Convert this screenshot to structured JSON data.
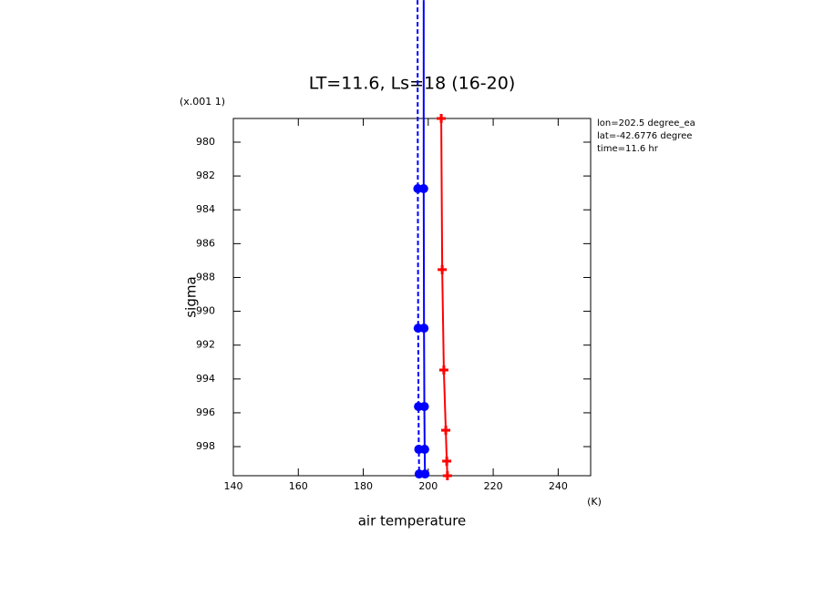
{
  "chart_data": {
    "type": "profile",
    "title": "LT=11.6, Ls=18 (16-20)",
    "y_label": "sigma",
    "y_scale_label": "(x.001 1)",
    "x_label": "air temperature",
    "x_unit_label": "(K)",
    "annotations": [
      "lon=202.5 degree_ea",
      "lat=-42.6776 degree",
      "time=11.6 hr"
    ],
    "xlim": [
      140,
      250
    ],
    "xticks": [
      140,
      160,
      180,
      200,
      220,
      240
    ],
    "ylim": [
      978.6,
      999.72
    ],
    "y_inverted": true,
    "yticks": [
      980,
      982,
      984,
      986,
      988,
      990,
      992,
      994,
      996,
      998
    ],
    "series": [
      {
        "color": "#ff0000",
        "dash": false,
        "marker": "plus",
        "x": [
          204,
          204.3,
          204.8,
          205.4,
          205.7,
          205.9
        ],
        "y": [
          978.6,
          987.54,
          993.47,
          997.03,
          998.86,
          999.72
        ]
      },
      {
        "color": "#0000ff",
        "dash": false,
        "marker": "circle",
        "x": [
          198.6,
          198.6,
          198.7,
          198.8,
          198.9,
          199.0
        ],
        "y": [
          971.6,
          982.75,
          991.0,
          995.63,
          998.16,
          999.62
        ]
      },
      {
        "color": "#0000ff",
        "dash": true,
        "marker": "circle",
        "x": [
          196.7,
          196.8,
          196.9,
          197.0,
          197.1,
          197.2
        ],
        "y": [
          971.6,
          982.75,
          991.0,
          995.63,
          998.16,
          999.62
        ]
      }
    ]
  }
}
